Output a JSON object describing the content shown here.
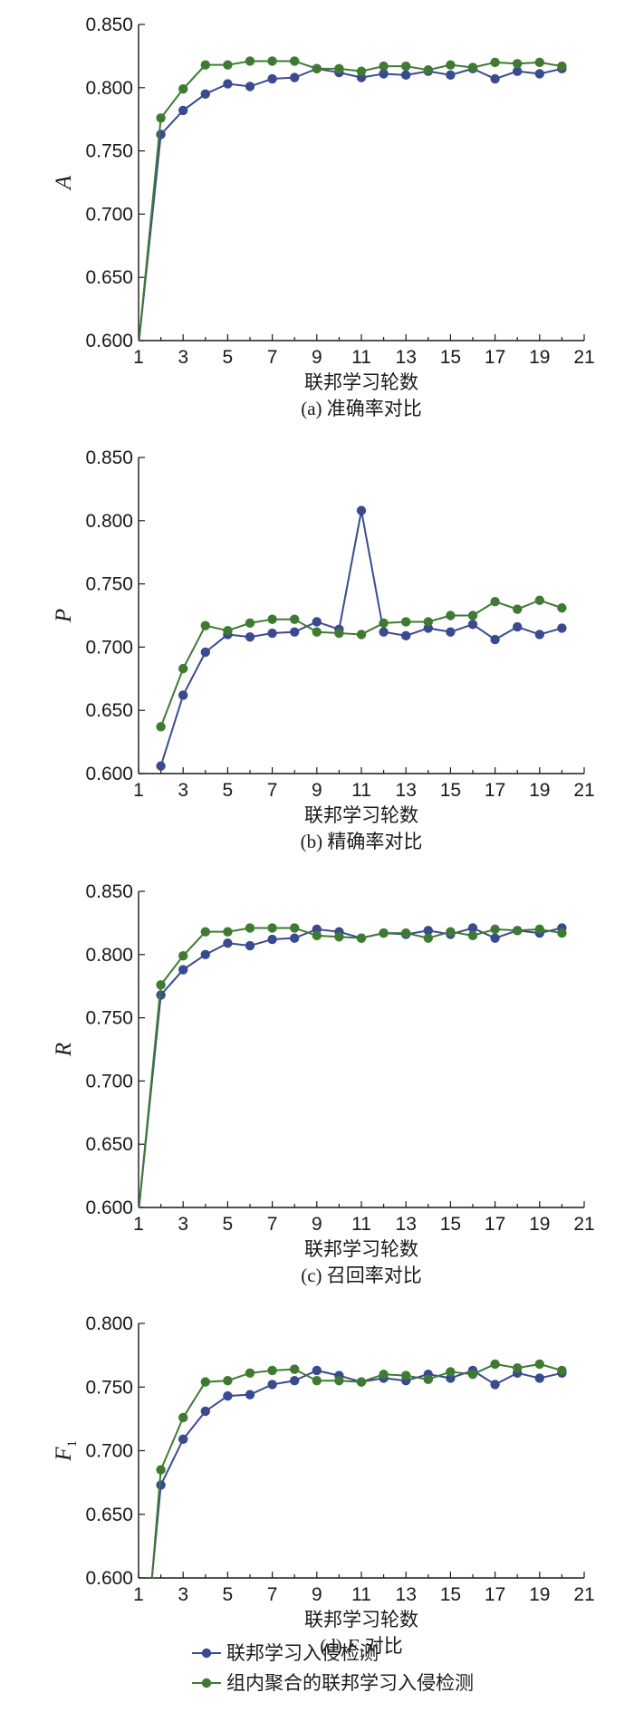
{
  "chart_data": [
    {
      "type": "line",
      "caption": "(a) 准确率对比",
      "ylabel": "A",
      "ylabel_sub": "",
      "xlabel": "联邦学习轮数",
      "ylim": [
        0.6,
        0.85
      ],
      "yticks": [
        "0.600",
        "0.650",
        "0.700",
        "0.750",
        "0.800",
        "0.850"
      ],
      "xlim": [
        1,
        21
      ],
      "xticks": [
        "1",
        "3",
        "5",
        "7",
        "9",
        "11",
        "13",
        "15",
        "17",
        "19",
        "21"
      ],
      "x": [
        2,
        3,
        4,
        5,
        6,
        7,
        8,
        9,
        10,
        11,
        12,
        13,
        14,
        15,
        16,
        17,
        18,
        19,
        20
      ],
      "series": [
        {
          "name": "联邦学习入侵检测",
          "color": "#3a4a8f",
          "values": [
            0.763,
            0.782,
            0.795,
            0.803,
            0.801,
            0.807,
            0.808,
            0.815,
            0.812,
            0.808,
            0.811,
            0.81,
            0.813,
            0.81,
            0.815,
            0.807,
            0.813,
            0.811,
            0.815
          ],
          "start": [
            1.02,
            0.6
          ]
        },
        {
          "name": "组内聚合的联邦学习入侵检测",
          "color": "#3f7a33",
          "values": [
            0.776,
            0.799,
            0.818,
            0.818,
            0.821,
            0.821,
            0.821,
            0.815,
            0.815,
            0.813,
            0.817,
            0.817,
            0.814,
            0.818,
            0.816,
            0.82,
            0.819,
            0.82,
            0.817
          ],
          "start": [
            1.02,
            0.6
          ]
        }
      ]
    },
    {
      "type": "line",
      "caption": "(b) 精确率对比",
      "ylabel": "P",
      "ylabel_sub": "",
      "xlabel": "联邦学习轮数",
      "ylim": [
        0.6,
        0.85
      ],
      "yticks": [
        "0.600",
        "0.650",
        "0.700",
        "0.750",
        "0.800",
        "0.850"
      ],
      "xlim": [
        1,
        21
      ],
      "xticks": [
        "1",
        "3",
        "5",
        "7",
        "9",
        "11",
        "13",
        "15",
        "17",
        "19",
        "21"
      ],
      "x": [
        2,
        3,
        4,
        5,
        6,
        7,
        8,
        9,
        10,
        11,
        12,
        13,
        14,
        15,
        16,
        17,
        18,
        19,
        20
      ],
      "series": [
        {
          "name": "联邦学习入侵检测",
          "color": "#3a4a8f",
          "values": [
            0.606,
            0.662,
            0.696,
            0.71,
            0.708,
            0.711,
            0.712,
            0.72,
            0.714,
            0.808,
            0.712,
            0.709,
            0.715,
            0.712,
            0.718,
            0.706,
            0.716,
            0.71,
            0.715
          ]
        },
        {
          "name": "组内聚合的联邦学习入侵检测",
          "color": "#3f7a33",
          "values": [
            0.637,
            0.683,
            0.717,
            0.713,
            0.719,
            0.722,
            0.722,
            0.712,
            0.711,
            0.71,
            0.719,
            0.72,
            0.72,
            0.725,
            0.725,
            0.736,
            0.73,
            0.737,
            0.731
          ]
        }
      ]
    },
    {
      "type": "line",
      "caption": "(c) 召回率对比",
      "ylabel": "R",
      "ylabel_sub": "",
      "xlabel": "联邦学习轮数",
      "ylim": [
        0.6,
        0.85
      ],
      "yticks": [
        "0.600",
        "0.650",
        "0.700",
        "0.750",
        "0.800",
        "0.850"
      ],
      "xlim": [
        1,
        21
      ],
      "xticks": [
        "1",
        "3",
        "5",
        "7",
        "9",
        "11",
        "13",
        "15",
        "17",
        "19",
        "21"
      ],
      "x": [
        2,
        3,
        4,
        5,
        6,
        7,
        8,
        9,
        10,
        11,
        12,
        13,
        14,
        15,
        16,
        17,
        18,
        19,
        20
      ],
      "series": [
        {
          "name": "联邦学习入侵检测",
          "color": "#3a4a8f",
          "values": [
            0.768,
            0.788,
            0.8,
            0.809,
            0.807,
            0.812,
            0.813,
            0.82,
            0.818,
            0.813,
            0.817,
            0.816,
            0.819,
            0.816,
            0.821,
            0.813,
            0.819,
            0.817,
            0.821
          ],
          "start": [
            1.02,
            0.6
          ]
        },
        {
          "name": "组内聚合的联邦学习入侵检测",
          "color": "#3f7a33",
          "values": [
            0.776,
            0.799,
            0.818,
            0.818,
            0.821,
            0.821,
            0.821,
            0.815,
            0.814,
            0.813,
            0.817,
            0.817,
            0.813,
            0.818,
            0.815,
            0.82,
            0.819,
            0.82,
            0.817
          ],
          "start": [
            1.02,
            0.6
          ]
        }
      ]
    },
    {
      "type": "line",
      "caption": "(d) F1对比",
      "caption_prefix": "(d) ",
      "caption_var": "F",
      "caption_sub": "1",
      "caption_suffix": "对比",
      "ylabel": "F",
      "ylabel_sub": "1",
      "xlabel": "联邦学习轮数",
      "ylim": [
        0.6,
        0.8
      ],
      "yticks": [
        "0.600",
        "0.650",
        "0.700",
        "0.750",
        "0.800"
      ],
      "xlim": [
        1,
        21
      ],
      "xticks": [
        "1",
        "3",
        "5",
        "7",
        "9",
        "11",
        "13",
        "15",
        "17",
        "19",
        "21"
      ],
      "x": [
        2,
        3,
        4,
        5,
        6,
        7,
        8,
        9,
        10,
        11,
        12,
        13,
        14,
        15,
        16,
        17,
        18,
        19,
        20
      ],
      "series": [
        {
          "name": "联邦学习入侵检测",
          "color": "#3a4a8f",
          "values": [
            0.673,
            0.709,
            0.731,
            0.743,
            0.744,
            0.752,
            0.755,
            0.763,
            0.759,
            0.754,
            0.757,
            0.755,
            0.76,
            0.757,
            0.763,
            0.752,
            0.761,
            0.757,
            0.761
          ],
          "start": [
            1.6,
            0.6
          ]
        },
        {
          "name": "组内聚合的联邦学习入侵检测",
          "color": "#3f7a33",
          "values": [
            0.685,
            0.726,
            0.754,
            0.755,
            0.761,
            0.763,
            0.764,
            0.755,
            0.755,
            0.754,
            0.76,
            0.759,
            0.756,
            0.762,
            0.76,
            0.768,
            0.765,
            0.768,
            0.763
          ],
          "start": [
            1.6,
            0.6
          ]
        }
      ]
    }
  ],
  "legend": {
    "position": "bottom",
    "items": [
      {
        "label": "联邦学习入侵检测",
        "color": "#3a4a8f"
      },
      {
        "label": "组内聚合的联邦学习入侵检测",
        "color": "#3f7a33"
      }
    ]
  }
}
